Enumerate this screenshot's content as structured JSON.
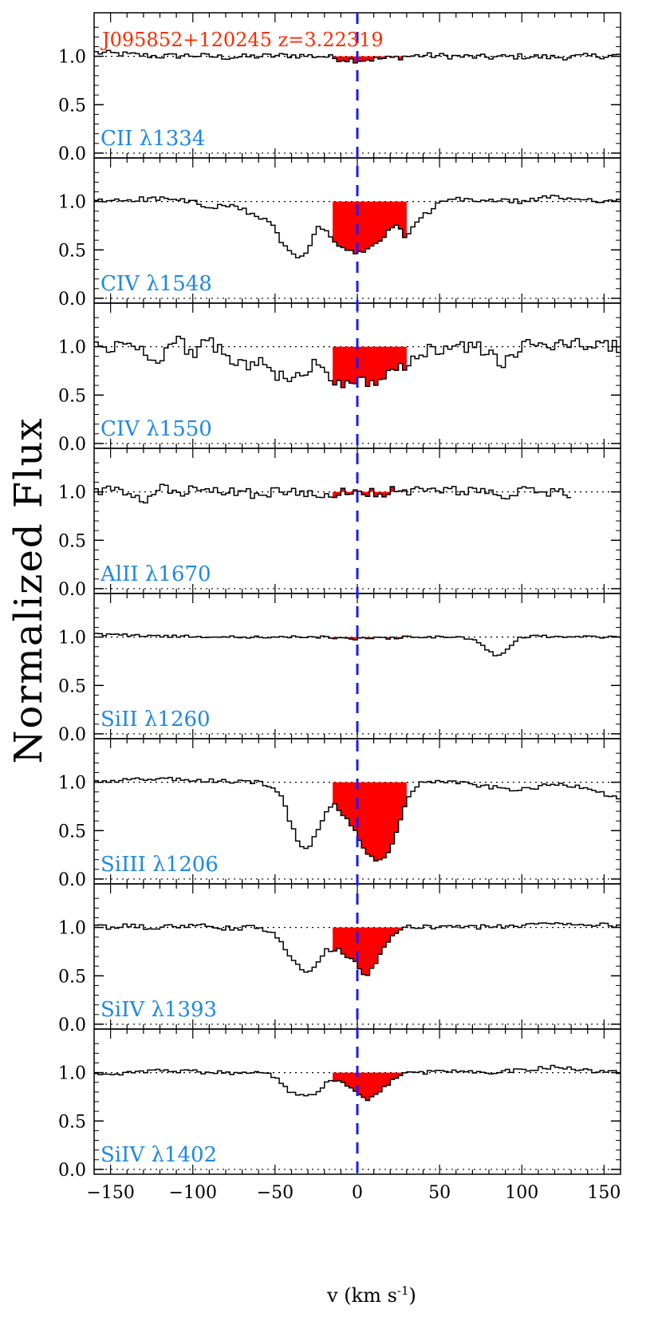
{
  "chart_data": {
    "type": "line",
    "title": "J095852+120245  z=3.22319",
    "ylabel": "Normalized Flux",
    "xlabel": "v (km s",
    "xlabel_exp": "-1",
    "xlabel_tail": ")",
    "xlim": [
      -160,
      160
    ],
    "ylim": [
      -0.05,
      1.45
    ],
    "x_ticks": [
      -150,
      -100,
      -50,
      0,
      50,
      100,
      150
    ],
    "x_tick_labels": [
      "−150",
      "−100",
      "−50",
      "0",
      "50",
      "100",
      "150"
    ],
    "y_ticks": [
      0.0,
      0.5,
      1.0
    ],
    "y_tick_labels": [
      "0.0",
      "0.5",
      "1.0"
    ],
    "continuum_level": 1.0,
    "zero_level": 0.0,
    "marker_velocity": 0,
    "absorption_window": [
      -15,
      30
    ],
    "colors": {
      "spectrum": "#000000",
      "fill": "#ff0000",
      "marker": "#1a1aff",
      "label": "#1e88e5",
      "title": "#ff2a00"
    },
    "panels": [
      {
        "label": "CII  λ1334",
        "v": [
          -160,
          -140,
          -120,
          -100,
          -80,
          -60,
          -40,
          -20,
          -10,
          0,
          10,
          20,
          30,
          40,
          60,
          80,
          100,
          120,
          140,
          160
        ],
        "flux": [
          1.04,
          1.02,
          1.0,
          1.01,
          0.99,
          1.0,
          1.01,
          1.0,
          0.97,
          0.96,
          0.97,
          0.98,
          1.0,
          1.01,
          1.0,
          0.99,
          1.0,
          0.99,
          1.0,
          1.01
        ]
      },
      {
        "label": "CIV  λ1548",
        "v": [
          -160,
          -140,
          -120,
          -100,
          -90,
          -80,
          -70,
          -60,
          -50,
          -45,
          -40,
          -35,
          -30,
          -25,
          -20,
          -15,
          -10,
          -5,
          0,
          5,
          10,
          15,
          20,
          25,
          30,
          35,
          40,
          45,
          50,
          60,
          80,
          100,
          120,
          130,
          140,
          160
        ],
        "flux": [
          1.0,
          1.02,
          1.03,
          1.0,
          0.92,
          0.96,
          0.92,
          0.85,
          0.72,
          0.55,
          0.45,
          0.42,
          0.5,
          0.72,
          0.72,
          0.6,
          0.52,
          0.48,
          0.47,
          0.48,
          0.55,
          0.62,
          0.7,
          0.75,
          0.62,
          0.75,
          0.85,
          0.9,
          1.0,
          1.02,
          1.01,
          1.0,
          1.05,
          1.03,
          1.02,
          1.0
        ]
      },
      {
        "label": "CIV  λ1550",
        "v": [
          -160,
          -150,
          -140,
          -130,
          -120,
          -110,
          -100,
          -90,
          -80,
          -70,
          -60,
          -50,
          -45,
          -40,
          -35,
          -30,
          -25,
          -20,
          -15,
          -10,
          -5,
          0,
          5,
          10,
          15,
          20,
          25,
          30,
          35,
          40,
          50,
          60,
          70,
          80,
          90,
          100,
          110,
          120,
          130,
          140,
          150,
          160
        ],
        "flux": [
          1.02,
          0.97,
          1.05,
          0.95,
          0.88,
          1.08,
          0.93,
          1.05,
          0.9,
          0.82,
          0.85,
          0.72,
          0.68,
          0.62,
          0.7,
          0.75,
          0.85,
          0.78,
          0.68,
          0.6,
          0.66,
          0.65,
          0.62,
          0.66,
          0.68,
          0.7,
          0.75,
          0.78,
          0.88,
          0.95,
          0.97,
          1.02,
          1.0,
          0.95,
          0.82,
          1.0,
          1.03,
          1.02,
          1.04,
          1.02,
          1.0,
          1.01
        ]
      },
      {
        "label": "AlII  λ1670",
        "v": [
          -160,
          -150,
          -140,
          -130,
          -120,
          -110,
          -100,
          -90,
          -80,
          -70,
          -60,
          -50,
          -40,
          -30,
          -20,
          -15,
          -10,
          -5,
          0,
          5,
          10,
          15,
          20,
          25,
          30,
          40,
          60,
          80,
          90,
          100,
          110,
          120,
          130
        ],
        "flux": [
          1.0,
          1.02,
          0.98,
          0.88,
          1.05,
          0.98,
          1.02,
          0.99,
          1.01,
          1.0,
          0.97,
          1.01,
          0.99,
          1.0,
          0.98,
          0.96,
          1.02,
          0.97,
          0.98,
          0.96,
          1.02,
          0.93,
          1.0,
          1.02,
          1.01,
          1.0,
          1.02,
          1.0,
          0.9,
          1.02,
          0.99,
          1.0,
          0.97
        ]
      },
      {
        "label": "SiII  λ1260",
        "v": [
          -160,
          -120,
          -80,
          -40,
          -20,
          -10,
          0,
          10,
          20,
          30,
          40,
          60,
          70,
          75,
          80,
          85,
          90,
          95,
          100,
          110,
          130,
          160
        ],
        "flux": [
          1.03,
          1.01,
          1.0,
          1.0,
          1.0,
          0.99,
          0.98,
          0.99,
          0.99,
          1.0,
          1.0,
          1.0,
          0.98,
          0.92,
          0.85,
          0.8,
          0.85,
          0.95,
          1.0,
          1.01,
          1.0,
          1.0
        ]
      },
      {
        "label": "SiIII  λ1206",
        "v": [
          -160,
          -140,
          -120,
          -100,
          -80,
          -60,
          -50,
          -45,
          -40,
          -35,
          -30,
          -25,
          -20,
          -15,
          -10,
          -5,
          0,
          5,
          10,
          15,
          20,
          25,
          30,
          35,
          40,
          50,
          60,
          80,
          100,
          120,
          140,
          160
        ],
        "flux": [
          1.0,
          1.02,
          1.04,
          1.02,
          1.01,
          1.0,
          0.95,
          0.82,
          0.55,
          0.35,
          0.32,
          0.45,
          0.68,
          0.78,
          0.7,
          0.58,
          0.45,
          0.3,
          0.2,
          0.18,
          0.32,
          0.55,
          0.8,
          0.95,
          1.0,
          1.01,
          1.0,
          0.95,
          0.92,
          0.98,
          0.95,
          0.82
        ]
      },
      {
        "label": "SiIV  λ1393",
        "v": [
          -160,
          -140,
          -120,
          -100,
          -80,
          -60,
          -50,
          -45,
          -40,
          -35,
          -30,
          -25,
          -20,
          -15,
          -10,
          -5,
          0,
          5,
          10,
          15,
          20,
          25,
          30,
          35,
          40,
          60,
          80,
          100,
          120,
          140,
          160
        ],
        "flux": [
          1.0,
          1.01,
          1.0,
          1.02,
          0.99,
          1.0,
          0.92,
          0.8,
          0.68,
          0.6,
          0.55,
          0.62,
          0.75,
          0.78,
          0.75,
          0.7,
          0.62,
          0.5,
          0.6,
          0.75,
          0.88,
          0.95,
          1.0,
          1.01,
          1.0,
          1.02,
          1.0,
          1.02,
          1.05,
          1.03,
          1.02
        ]
      },
      {
        "label": "SiIV  λ1402",
        "v": [
          -160,
          -140,
          -120,
          -100,
          -80,
          -60,
          -50,
          -45,
          -40,
          -35,
          -30,
          -25,
          -20,
          -15,
          -10,
          -5,
          0,
          5,
          10,
          15,
          20,
          25,
          30,
          35,
          40,
          60,
          80,
          100,
          120,
          140,
          160
        ],
        "flux": [
          0.97,
          1.0,
          1.02,
          1.01,
          1.0,
          1.0,
          0.96,
          0.85,
          0.8,
          0.78,
          0.75,
          0.8,
          0.88,
          0.92,
          0.9,
          0.85,
          0.78,
          0.72,
          0.75,
          0.82,
          0.9,
          0.96,
          1.0,
          1.01,
          1.0,
          1.02,
          1.0,
          1.03,
          1.06,
          1.02,
          1.0
        ]
      }
    ]
  }
}
